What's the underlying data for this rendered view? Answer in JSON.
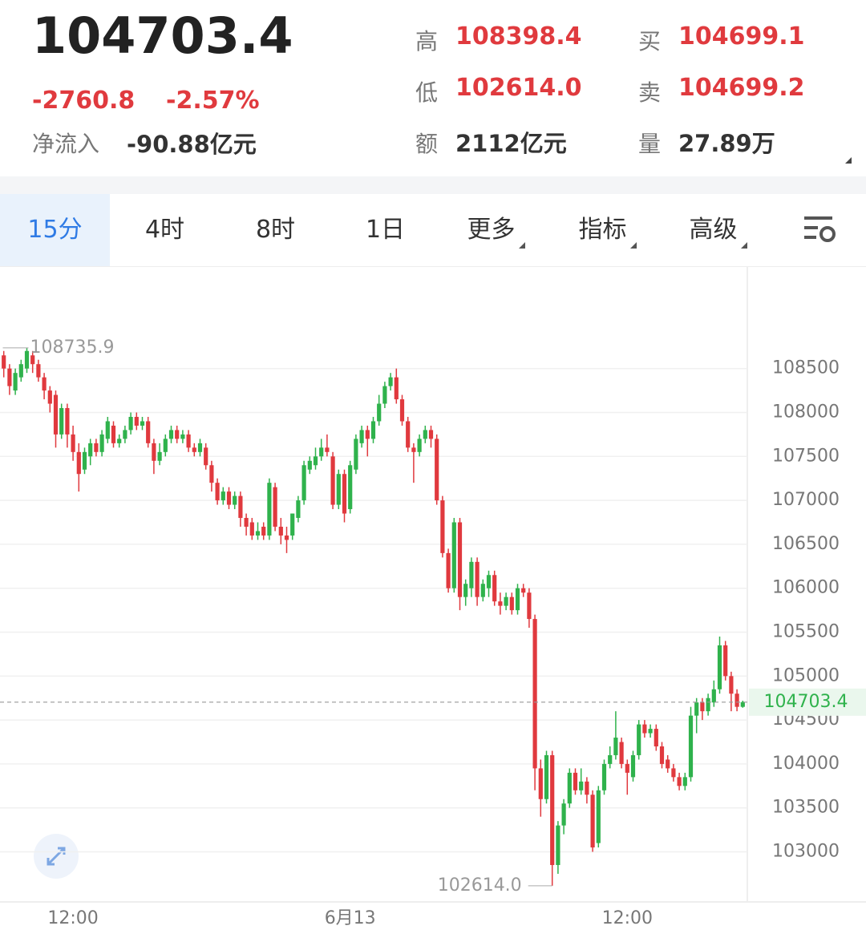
{
  "header": {
    "price": "104703.4",
    "change": "-2760.8",
    "change_pct": "-2.57%",
    "inflow_label": "净流入",
    "inflow_value": "-90.88亿元",
    "stats": [
      {
        "label": "高",
        "value": "108398.4"
      },
      {
        "label": "买",
        "value": "104699.1"
      },
      {
        "label": "低",
        "value": "102614.0"
      },
      {
        "label": "卖",
        "value": "104699.2"
      },
      {
        "label": "额",
        "value": "2112亿元"
      },
      {
        "label": "量",
        "value": "27.89万"
      }
    ]
  },
  "tabs": [
    "15分",
    "4时",
    "8时",
    "1日",
    "更多",
    "指标",
    "高级"
  ],
  "chart_data": {
    "type": "candlestick",
    "categories": [
      null,
      null,
      null,
      null,
      null,
      null,
      null,
      null,
      null,
      null,
      null,
      null,
      "12:00",
      null,
      null,
      null,
      null,
      null,
      null,
      null,
      null,
      null,
      null,
      null,
      null,
      null,
      null,
      null,
      null,
      null,
      null,
      null,
      null,
      null,
      null,
      null,
      null,
      null,
      null,
      null,
      null,
      null,
      null,
      null,
      null,
      null,
      null,
      null,
      null,
      null,
      null,
      null,
      null,
      null,
      null,
      null,
      null,
      null,
      null,
      null,
      "6月13",
      null,
      null,
      null,
      null,
      null,
      null,
      null,
      null,
      null,
      null,
      null,
      null,
      null,
      null,
      null,
      null,
      null,
      null,
      null,
      null,
      null,
      null,
      null,
      null,
      null,
      null,
      null,
      null,
      null,
      null,
      null,
      null,
      null,
      null,
      null,
      null,
      null,
      null,
      null,
      null,
      null,
      null,
      null,
      null,
      null,
      null,
      null,
      "12:00",
      null,
      null,
      null,
      null,
      null,
      null,
      null,
      null,
      null,
      null,
      null,
      null,
      null,
      null,
      null,
      null,
      null,
      null,
      null,
      null
    ],
    "open": [
      108650,
      108500,
      108250,
      108400,
      108500,
      108650,
      108550,
      108400,
      108250,
      108200,
      107750,
      108050,
      107750,
      107550,
      107350,
      107500,
      107650,
      107550,
      107700,
      107850,
      107650,
      107700,
      107800,
      107950,
      107850,
      107900,
      107650,
      107450,
      107550,
      107700,
      107800,
      107700,
      107750,
      107600,
      107550,
      107600,
      107400,
      107200,
      107000,
      107100,
      106950,
      107050,
      106800,
      106750,
      106600,
      106700,
      106600,
      107150,
      106700,
      106600,
      106600,
      106800,
      107000,
      107350,
      107400,
      107500,
      107600,
      107500,
      106950,
      107300,
      106900,
      107350,
      107650,
      107800,
      107700,
      107900,
      108100,
      108300,
      108400,
      108150,
      107900,
      107600,
      107550,
      107700,
      107800,
      107700,
      107000,
      106400,
      106000,
      106750,
      105900,
      106000,
      106300,
      105900,
      106000,
      106150,
      105850,
      105800,
      105900,
      105750,
      106000,
      105950,
      105650,
      103950,
      103600,
      104100,
      102850,
      103300,
      103550,
      103900,
      103700,
      103800,
      103650,
      103100,
      103700,
      104000,
      104100,
      104250,
      104000,
      103850,
      104100,
      104450,
      104350,
      104400,
      104200,
      104050,
      103950,
      103850,
      103750,
      103850,
      104550,
      104700,
      104600,
      104700,
      104850,
      105350,
      105000,
      104800,
      104650
    ],
    "high": [
      108700,
      108550,
      108500,
      108600,
      108735.9,
      108700,
      108600,
      108450,
      108300,
      108250,
      108100,
      108100,
      107850,
      107650,
      107600,
      107700,
      107700,
      107800,
      107950,
      107900,
      107750,
      107850,
      108000,
      108000,
      107950,
      107950,
      107700,
      107650,
      107750,
      107850,
      107850,
      107800,
      107800,
      107650,
      107700,
      107650,
      107450,
      107250,
      107150,
      107150,
      107100,
      107100,
      106850,
      106800,
      106750,
      106750,
      107250,
      107200,
      106800,
      106700,
      106850,
      107050,
      107450,
      107500,
      107600,
      107700,
      107750,
      107550,
      107350,
      107350,
      107450,
      107750,
      107850,
      107850,
      107950,
      108200,
      108350,
      108450,
      108500,
      108200,
      107950,
      107650,
      107750,
      107850,
      107850,
      107750,
      107050,
      106450,
      106800,
      106800,
      106100,
      106350,
      106350,
      106100,
      106200,
      106200,
      105950,
      105950,
      105950,
      106050,
      106050,
      106000,
      105700,
      104050,
      104150,
      104150,
      103350,
      103600,
      103950,
      103950,
      103950,
      103850,
      103700,
      103750,
      104050,
      104200,
      104600,
      104300,
      104050,
      104150,
      104500,
      104500,
      104450,
      104450,
      104250,
      104100,
      104000,
      103900,
      103900,
      104650,
      104750,
      104750,
      104800,
      104950,
      105450,
      105400,
      105050,
      104850,
      104720
    ],
    "low": [
      108400,
      108200,
      108200,
      108350,
      108450,
      108450,
      108350,
      108150,
      108000,
      107600,
      107700,
      107600,
      107450,
      107100,
      107300,
      107400,
      107500,
      107500,
      107650,
      107600,
      107600,
      107650,
      107750,
      107800,
      107800,
      107600,
      107300,
      107400,
      107500,
      107650,
      107650,
      107650,
      107550,
      107500,
      107500,
      107350,
      107100,
      106950,
      106950,
      106900,
      106900,
      106700,
      106600,
      106550,
      106550,
      106550,
      106550,
      106650,
      106500,
      106400,
      106550,
      106750,
      106950,
      107300,
      107350,
      107450,
      107500,
      106900,
      106900,
      106750,
      106850,
      107300,
      107600,
      107500,
      107650,
      107850,
      108050,
      108250,
      108100,
      107850,
      107550,
      107200,
      107500,
      107650,
      107600,
      106950,
      106350,
      105950,
      105950,
      105750,
      105800,
      105900,
      105800,
      105850,
      105900,
      105800,
      105700,
      105750,
      105700,
      105700,
      105900,
      105550,
      103700,
      103400,
      103550,
      102614.0,
      102750,
      103200,
      103500,
      103650,
      103650,
      103550,
      103000,
      103050,
      103650,
      103950,
      104050,
      103950,
      103650,
      103800,
      104050,
      104300,
      104300,
      104150,
      103950,
      103900,
      103800,
      103700,
      103700,
      103800,
      104350,
      104500,
      104550,
      104650,
      104800,
      104950,
      104600,
      104600,
      104640
    ],
    "close": [
      108500,
      108300,
      108450,
      108550,
      108700,
      108550,
      108400,
      108250,
      108100,
      107750,
      108050,
      107750,
      107550,
      107300,
      107550,
      107650,
      107550,
      107750,
      107900,
      107650,
      107700,
      107800,
      107950,
      107850,
      107900,
      107650,
      107450,
      107550,
      107700,
      107800,
      107700,
      107750,
      107600,
      107550,
      107650,
      107400,
      107200,
      107000,
      107100,
      106950,
      107050,
      106800,
      106700,
      106600,
      106650,
      106600,
      107200,
      106700,
      106600,
      106550,
      106850,
      107000,
      107400,
      107450,
      107500,
      107600,
      107550,
      106950,
      107300,
      106850,
      107400,
      107700,
      107800,
      107700,
      107900,
      108100,
      108300,
      108400,
      108150,
      107900,
      107600,
      107550,
      107700,
      107800,
      107700,
      107000,
      106400,
      106000,
      106750,
      105900,
      106050,
      106300,
      105900,
      106050,
      106150,
      105850,
      105800,
      105900,
      105750,
      106000,
      105950,
      105650,
      103950,
      103600,
      104100,
      102850,
      103300,
      103550,
      103900,
      103700,
      103800,
      103650,
      103050,
      103700,
      104000,
      104100,
      104300,
      104000,
      103900,
      104100,
      104450,
      104350,
      104400,
      104200,
      104000,
      103950,
      103850,
      103750,
      103850,
      104550,
      104700,
      104600,
      104750,
      104850,
      105350,
      105000,
      104800,
      104650,
      104703.4
    ],
    "up_color": "#2fb24c",
    "down_color": "#e0393e",
    "ylim": [
      102430,
      109665
    ],
    "yticks": [
      103000,
      103500,
      104000,
      104500,
      105000,
      105500,
      106000,
      106500,
      107000,
      107500,
      108000,
      108500
    ],
    "grid": true,
    "max_label": 108735.9,
    "min_label": {
      "value": 102614.0,
      "label": "102614.0"
    },
    "last_price": 104703.4
  }
}
